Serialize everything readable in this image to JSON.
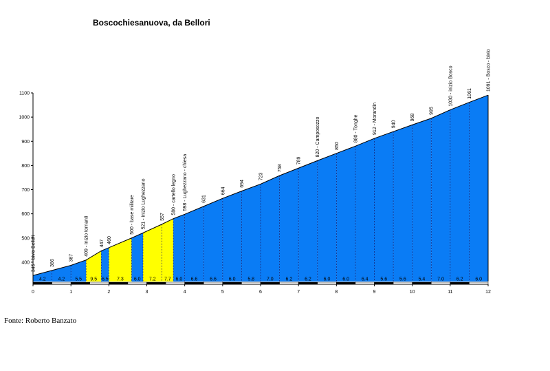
{
  "chart_data": {
    "type": "area",
    "title": "Boscochiesanuova, da Bellori",
    "xlabel": "",
    "ylabel": "",
    "xlim": [
      0,
      12
    ],
    "ylim": [
      320,
      1100
    ],
    "x_ticks": [
      0,
      1,
      2,
      3,
      4,
      5,
      6,
      7,
      8,
      9,
      10,
      11,
      12
    ],
    "y_ticks": [
      400,
      500,
      600,
      700,
      800,
      900,
      1000,
      1100
    ],
    "grid": false,
    "points": [
      {
        "x": 0.0,
        "y": 345,
        "label": "345 - bivio Bellori"
      },
      {
        "x": 0.5,
        "y": 366,
        "label": "366"
      },
      {
        "x": 1.0,
        "y": 387,
        "label": "387"
      },
      {
        "x": 1.4,
        "y": 409,
        "label": "409 - inizio tornanti"
      },
      {
        "x": 1.8,
        "y": 447,
        "label": "447"
      },
      {
        "x": 2.0,
        "y": 460,
        "label": "460"
      },
      {
        "x": 2.6,
        "y": 500,
        "label": "500 - base militare"
      },
      {
        "x": 2.9,
        "y": 521,
        "label": "521 - inizio Lughezzano"
      },
      {
        "x": 3.4,
        "y": 557,
        "label": "557"
      },
      {
        "x": 3.7,
        "y": 580,
        "label": "580 - cartello legno"
      },
      {
        "x": 4.0,
        "y": 598,
        "label": "598 - Lughezzano - chiesa"
      },
      {
        "x": 4.5,
        "y": 631,
        "label": "631"
      },
      {
        "x": 5.0,
        "y": 664,
        "label": "664"
      },
      {
        "x": 5.5,
        "y": 694,
        "label": "694"
      },
      {
        "x": 6.0,
        "y": 723,
        "label": "723"
      },
      {
        "x": 6.5,
        "y": 758,
        "label": "758"
      },
      {
        "x": 7.0,
        "y": 789,
        "label": "789"
      },
      {
        "x": 7.5,
        "y": 820,
        "label": "820 - Camposozzo"
      },
      {
        "x": 8.0,
        "y": 850,
        "label": "850"
      },
      {
        "x": 8.5,
        "y": 880,
        "label": "880 - Tonghe"
      },
      {
        "x": 9.0,
        "y": 912,
        "label": "912 - Morandin"
      },
      {
        "x": 9.5,
        "y": 940,
        "label": "940"
      },
      {
        "x": 10.0,
        "y": 968,
        "label": "968"
      },
      {
        "x": 10.5,
        "y": 995,
        "label": "995"
      },
      {
        "x": 11.0,
        "y": 1030,
        "label": "1030 - inizio Bosco"
      },
      {
        "x": 11.5,
        "y": 1061,
        "label": "1061"
      },
      {
        "x": 12.0,
        "y": 1091,
        "label": "1091 - Bosco - bivio"
      }
    ],
    "segments": [
      {
        "from": 0.0,
        "to": 0.5,
        "gradient": "4.2",
        "color": "#0a7cf5"
      },
      {
        "from": 0.5,
        "to": 1.0,
        "gradient": "4.2",
        "color": "#0a7cf5"
      },
      {
        "from": 1.0,
        "to": 1.4,
        "gradient": "5.5",
        "color": "#0a7cf5"
      },
      {
        "from": 1.4,
        "to": 1.8,
        "gradient": "9.5",
        "color": "#ffff00"
      },
      {
        "from": 1.8,
        "to": 2.0,
        "gradient": "6.5",
        "color": "#0a7cf5"
      },
      {
        "from": 2.0,
        "to": 2.6,
        "gradient": "7.3",
        "color": "#ffff00"
      },
      {
        "from": 2.6,
        "to": 2.9,
        "gradient": "6.0",
        "color": "#0a7cf5"
      },
      {
        "from": 2.9,
        "to": 3.4,
        "gradient": "7.2",
        "color": "#ffff00"
      },
      {
        "from": 3.4,
        "to": 3.7,
        "gradient": "7.7",
        "color": "#ffff00"
      },
      {
        "from": 3.7,
        "to": 4.0,
        "gradient": "6.0",
        "color": "#0a7cf5"
      },
      {
        "from": 4.0,
        "to": 4.5,
        "gradient": "6.6",
        "color": "#0a7cf5"
      },
      {
        "from": 4.5,
        "to": 5.0,
        "gradient": "6.6",
        "color": "#0a7cf5"
      },
      {
        "from": 5.0,
        "to": 5.5,
        "gradient": "6.0",
        "color": "#0a7cf5"
      },
      {
        "from": 5.5,
        "to": 6.0,
        "gradient": "5.8",
        "color": "#0a7cf5"
      },
      {
        "from": 6.0,
        "to": 6.5,
        "gradient": "7.0",
        "color": "#0a7cf5"
      },
      {
        "from": 6.5,
        "to": 7.0,
        "gradient": "6.2",
        "color": "#0a7cf5"
      },
      {
        "from": 7.0,
        "to": 7.5,
        "gradient": "6.2",
        "color": "#0a7cf5"
      },
      {
        "from": 7.5,
        "to": 8.0,
        "gradient": "6.0",
        "color": "#0a7cf5"
      },
      {
        "from": 8.0,
        "to": 8.5,
        "gradient": "6.0",
        "color": "#0a7cf5"
      },
      {
        "from": 8.5,
        "to": 9.0,
        "gradient": "6.4",
        "color": "#0a7cf5"
      },
      {
        "from": 9.0,
        "to": 9.5,
        "gradient": "5.6",
        "color": "#0a7cf5"
      },
      {
        "from": 9.5,
        "to": 10.0,
        "gradient": "5.6",
        "color": "#0a7cf5"
      },
      {
        "from": 10.0,
        "to": 10.5,
        "gradient": "5.4",
        "color": "#0a7cf5"
      },
      {
        "from": 10.5,
        "to": 11.0,
        "gradient": "7.0",
        "color": "#0a7cf5"
      },
      {
        "from": 11.0,
        "to": 11.5,
        "gradient": "6.2",
        "color": "#0a7cf5"
      },
      {
        "from": 11.5,
        "to": 12.0,
        "gradient": "6.0",
        "color": "#0a7cf5"
      }
    ]
  },
  "source_text": "Fonte: Roberto Banzato",
  "colors": {
    "axis": "#000000",
    "outline": "#000000",
    "divider": "#1a1a66"
  }
}
